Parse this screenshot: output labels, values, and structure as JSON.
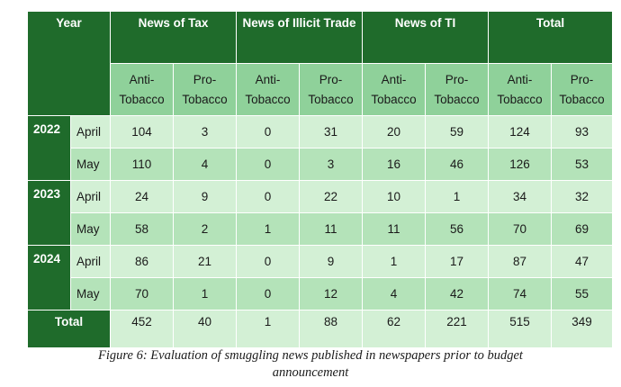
{
  "header": {
    "year": "Year",
    "groups": [
      "News of Tax",
      "News of Illicit Trade",
      "News of TI",
      "Total"
    ],
    "sub": {
      "anti": [
        "Anti-",
        "Tobacco"
      ],
      "pro": [
        "Pro-",
        "Tobacco"
      ]
    }
  },
  "rows": [
    {
      "year": "2022",
      "month": "April",
      "values": [
        "104",
        "3",
        "0",
        "31",
        "20",
        "59",
        "124",
        "93"
      ]
    },
    {
      "year": "",
      "month": "May",
      "values": [
        "110",
        "4",
        "0",
        "3",
        "16",
        "46",
        "126",
        "53"
      ]
    },
    {
      "year": "2023",
      "month": "April",
      "values": [
        "24",
        "9",
        "0",
        "22",
        "10",
        "1",
        "34",
        "32"
      ]
    },
    {
      "year": "",
      "month": "May",
      "values": [
        "58",
        "2",
        "1",
        "11",
        "11",
        "56",
        "70",
        "69"
      ]
    },
    {
      "year": "2024",
      "month": "April",
      "values": [
        "86",
        "21",
        "0",
        "9",
        "1",
        "17",
        "87",
        "47"
      ]
    },
    {
      "year": "",
      "month": "May",
      "values": [
        "70",
        "1",
        "0",
        "12",
        "4",
        "42",
        "74",
        "55"
      ]
    }
  ],
  "total": {
    "label": "Total",
    "values": [
      "452",
      "40",
      "1",
      "88",
      "62",
      "221",
      "515",
      "349"
    ]
  },
  "caption": {
    "line1": "Figure 6: Evaluation of smuggling news published in newspapers prior to budget",
    "line2": "announcement"
  }
}
